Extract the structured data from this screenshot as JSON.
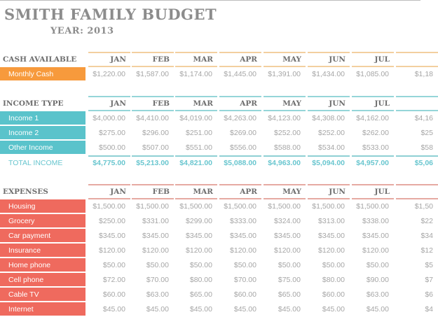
{
  "title": "SMITH FAMILY BUDGET",
  "year_label": "YEAR: 2013",
  "colors": {
    "cash_accent": "#f79a3c",
    "income_accent": "#5ac3cb",
    "expense_accent": "#ef6a5e",
    "cash_rule": "#f3cf9f",
    "income_rule": "#95d5d8",
    "expense_rule": "#e6aaa2"
  },
  "months": [
    "JAN",
    "FEB",
    "MAR",
    "APR",
    "MAY",
    "JUN",
    "JUL",
    ""
  ],
  "cash": {
    "header": "CASH AVAILABLE",
    "rows": [
      {
        "label": "Monthly Cash",
        "values": [
          "$1,220.00",
          "$1,587.00",
          "$1,174.00",
          "$1,445.00",
          "$1,391.00",
          "$1,434.00",
          "$1,085.00",
          "$1,18"
        ]
      }
    ]
  },
  "income": {
    "header": "INCOME TYPE",
    "rows": [
      {
        "label": "Income 1",
        "values": [
          "$4,000.00",
          "$4,410.00",
          "$4,019.00",
          "$4,263.00",
          "$4,123.00",
          "$4,308.00",
          "$4,162.00",
          "$4,16"
        ]
      },
      {
        "label": "Income 2",
        "values": [
          "$275.00",
          "$296.00",
          "$251.00",
          "$269.00",
          "$252.00",
          "$252.00",
          "$262.00",
          "$25"
        ]
      },
      {
        "label": "Other Income",
        "values": [
          "$500.00",
          "$507.00",
          "$551.00",
          "$556.00",
          "$588.00",
          "$534.00",
          "$533.00",
          "$58"
        ]
      }
    ],
    "total": {
      "label": "TOTAL INCOME",
      "values": [
        "$4,775.00",
        "$5,213.00",
        "$4,821.00",
        "$5,088.00",
        "$4,963.00",
        "$5,094.00",
        "$4,957.00",
        "$5,06"
      ]
    }
  },
  "expenses": {
    "header": "EXPENSES",
    "rows": [
      {
        "label": "Housing",
        "values": [
          "$1,500.00",
          "$1,500.00",
          "$1,500.00",
          "$1,500.00",
          "$1,500.00",
          "$1,500.00",
          "$1,500.00",
          "$1,50"
        ]
      },
      {
        "label": "Grocery",
        "values": [
          "$250.00",
          "$331.00",
          "$299.00",
          "$333.00",
          "$324.00",
          "$313.00",
          "$338.00",
          "$22"
        ]
      },
      {
        "label": "Car payment",
        "values": [
          "$345.00",
          "$345.00",
          "$345.00",
          "$345.00",
          "$345.00",
          "$345.00",
          "$345.00",
          "$34"
        ]
      },
      {
        "label": "Insurance",
        "values": [
          "$120.00",
          "$120.00",
          "$120.00",
          "$120.00",
          "$120.00",
          "$120.00",
          "$120.00",
          "$12"
        ]
      },
      {
        "label": "Home phone",
        "values": [
          "$50.00",
          "$50.00",
          "$50.00",
          "$50.00",
          "$50.00",
          "$50.00",
          "$50.00",
          "$5"
        ]
      },
      {
        "label": "Cell phone",
        "values": [
          "$72.00",
          "$70.00",
          "$80.00",
          "$70.00",
          "$75.00",
          "$80.00",
          "$90.00",
          "$7"
        ]
      },
      {
        "label": "Cable TV",
        "values": [
          "$60.00",
          "$63.00",
          "$65.00",
          "$60.00",
          "$65.00",
          "$60.00",
          "$63.00",
          "$6"
        ]
      },
      {
        "label": "Internet",
        "values": [
          "$45.00",
          "$45.00",
          "$45.00",
          "$45.00",
          "$45.00",
          "$45.00",
          "$45.00",
          "$4"
        ]
      }
    ]
  }
}
